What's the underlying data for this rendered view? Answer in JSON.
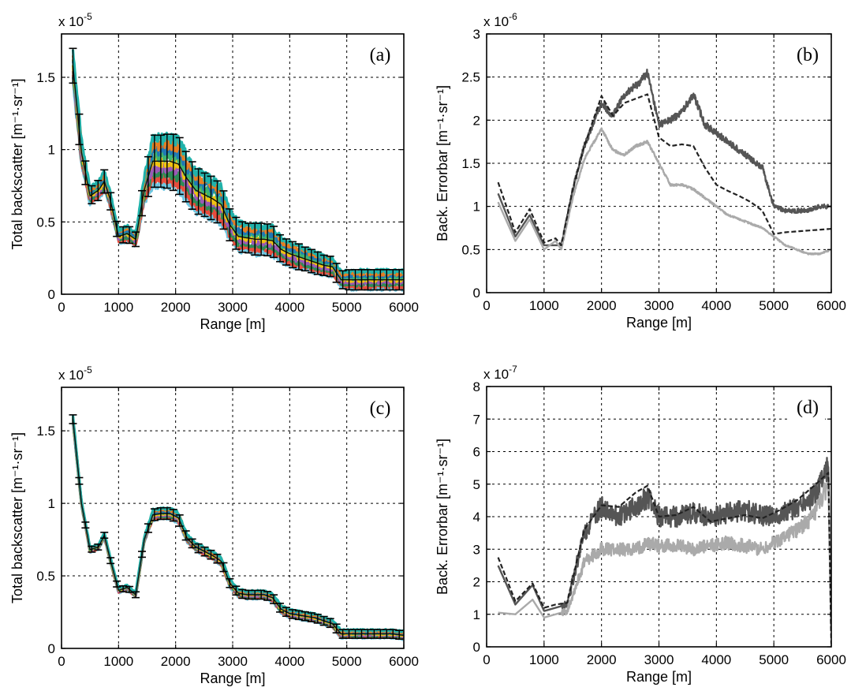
{
  "chart_data": [
    {
      "id": "a",
      "type": "line",
      "panel_label": "(a)",
      "xlabel": "Range [m]",
      "ylabel": "Total backscatter [m⁻¹·sr⁻¹]",
      "exponent": "x 10",
      "exponent_power": "-5",
      "xlim": [
        0,
        6000
      ],
      "ylim": [
        0,
        1.8
      ],
      "xticks": [
        "0",
        "1000",
        "2000",
        "3000",
        "4000",
        "5000",
        "6000"
      ],
      "yticks": [
        "0",
        "0.5",
        "1",
        "1.5"
      ],
      "ytick_values": [
        0,
        0.5,
        1,
        1.5
      ],
      "grid": true,
      "x": [
        200,
        350,
        500,
        650,
        750,
        850,
        1000,
        1150,
        1300,
        1450,
        1600,
        1750,
        1900,
        2050,
        2200,
        2350,
        2500,
        2650,
        2800,
        2950,
        3100,
        3250,
        3400,
        3550,
        3700,
        3850,
        4000,
        4150,
        4300,
        4450,
        4600,
        4750,
        4900,
        5050,
        5200,
        5400,
        5600,
        5800,
        6000
      ],
      "mean": [
        1.58,
        0.98,
        0.68,
        0.72,
        0.78,
        0.66,
        0.4,
        0.42,
        0.38,
        0.72,
        0.92,
        0.92,
        0.92,
        0.9,
        0.8,
        0.72,
        0.69,
        0.66,
        0.62,
        0.48,
        0.4,
        0.39,
        0.38,
        0.38,
        0.37,
        0.31,
        0.28,
        0.26,
        0.24,
        0.22,
        0.2,
        0.19,
        0.1,
        0.1,
        0.1,
        0.1,
        0.1,
        0.1,
        0.1
      ],
      "spread": [
        0.12,
        0.1,
        0.06,
        0.07,
        0.08,
        0.06,
        0.05,
        0.06,
        0.05,
        0.1,
        0.18,
        0.18,
        0.19,
        0.2,
        0.17,
        0.16,
        0.15,
        0.15,
        0.14,
        0.11,
        0.11,
        0.1,
        0.11,
        0.11,
        0.11,
        0.09,
        0.09,
        0.09,
        0.08,
        0.08,
        0.07,
        0.07,
        0.06,
        0.07,
        0.07,
        0.07,
        0.07,
        0.07,
        0.07
      ]
    },
    {
      "id": "b",
      "type": "line",
      "panel_label": "(b)",
      "xlabel": "Range [m]",
      "ylabel": "Back. Errorbar [m⁻¹·sr⁻¹]",
      "exponent": "x 10",
      "exponent_power": "-6",
      "xlim": [
        0,
        6000
      ],
      "ylim": [
        0,
        3
      ],
      "xticks": [
        "0",
        "1000",
        "2000",
        "3000",
        "4000",
        "5000",
        "6000"
      ],
      "yticks": [
        "0",
        "0.5",
        "1",
        "1.5",
        "2",
        "2.5",
        "3"
      ],
      "ytick_values": [
        0,
        0.5,
        1,
        1.5,
        2,
        2.5,
        3
      ],
      "grid": true,
      "x": [
        200,
        500,
        750,
        1000,
        1200,
        1300,
        1500,
        1700,
        2000,
        2200,
        2400,
        2600,
        2800,
        3000,
        3200,
        3400,
        3600,
        3800,
        4000,
        4200,
        4400,
        4600,
        4800,
        5000,
        5200,
        5400,
        5600,
        5800,
        6000
      ],
      "series": [
        {
          "color": "#555555",
          "style": "solid",
          "noise": 0.12,
          "values": [
            1.15,
            0.65,
            0.9,
            0.55,
            0.55,
            0.55,
            1.2,
            1.7,
            2.2,
            2.05,
            2.3,
            2.4,
            2.55,
            1.95,
            2.0,
            2.1,
            2.3,
            1.95,
            1.85,
            1.75,
            1.65,
            1.55,
            1.45,
            1.0,
            0.95,
            0.95,
            0.95,
            1.0,
            1.0
          ]
        },
        {
          "color": "#aaaaaa",
          "style": "solid",
          "noise": 0.05,
          "values": [
            1.05,
            0.6,
            0.85,
            0.5,
            0.6,
            0.5,
            1.1,
            1.55,
            1.9,
            1.65,
            1.6,
            1.7,
            1.75,
            1.5,
            1.25,
            1.25,
            1.2,
            1.1,
            1.0,
            0.9,
            0.85,
            0.8,
            0.75,
            0.65,
            0.55,
            0.5,
            0.45,
            0.45,
            0.5
          ]
        },
        {
          "color": "#222222",
          "style": "dashed",
          "noise": 0,
          "values": [
            1.28,
            0.7,
            0.97,
            0.58,
            0.63,
            0.55,
            1.2,
            1.7,
            2.28,
            2.05,
            2.2,
            2.25,
            2.3,
            1.8,
            1.7,
            1.72,
            1.7,
            1.45,
            1.25,
            1.18,
            1.12,
            1.05,
            0.95,
            0.68,
            0.7,
            0.71,
            0.72,
            0.73,
            0.74
          ]
        }
      ]
    },
    {
      "id": "c",
      "type": "line",
      "panel_label": "(c)",
      "xlabel": "Range [m]",
      "ylabel": "Total backscatter [m⁻¹·sr⁻¹]",
      "exponent": "x 10",
      "exponent_power": "-5",
      "xlim": [
        0,
        6000
      ],
      "ylim": [
        0,
        1.8
      ],
      "xticks": [
        "0",
        "1000",
        "2000",
        "3000",
        "4000",
        "5000",
        "6000"
      ],
      "yticks": [
        "0",
        "0.5",
        "1",
        "1.5"
      ],
      "ytick_values": [
        0,
        0.5,
        1,
        1.5
      ],
      "grid": true,
      "x": [
        200,
        350,
        500,
        650,
        750,
        850,
        1000,
        1150,
        1300,
        1450,
        1600,
        1750,
        1900,
        2050,
        2200,
        2350,
        2500,
        2650,
        2800,
        2950,
        3100,
        3250,
        3400,
        3550,
        3700,
        3850,
        4000,
        4150,
        4300,
        4450,
        4600,
        4750,
        4900,
        5050,
        5200,
        5400,
        5600,
        5800,
        6000
      ],
      "mean": [
        1.58,
        1.0,
        0.68,
        0.7,
        0.78,
        0.62,
        0.4,
        0.42,
        0.37,
        0.75,
        0.92,
        0.93,
        0.93,
        0.9,
        0.76,
        0.7,
        0.67,
        0.64,
        0.6,
        0.45,
        0.38,
        0.37,
        0.37,
        0.37,
        0.35,
        0.27,
        0.24,
        0.23,
        0.22,
        0.21,
        0.19,
        0.17,
        0.1,
        0.1,
        0.1,
        0.1,
        0.1,
        0.1,
        0.09
      ],
      "spread": [
        0.03,
        0.02,
        0.02,
        0.02,
        0.02,
        0.02,
        0.02,
        0.02,
        0.02,
        0.02,
        0.04,
        0.04,
        0.04,
        0.04,
        0.03,
        0.03,
        0.03,
        0.03,
        0.03,
        0.03,
        0.03,
        0.03,
        0.03,
        0.03,
        0.03,
        0.03,
        0.03,
        0.03,
        0.03,
        0.03,
        0.03,
        0.03,
        0.03,
        0.03,
        0.03,
        0.03,
        0.03,
        0.03,
        0.03
      ]
    },
    {
      "id": "d",
      "type": "line",
      "panel_label": "(d)",
      "xlabel": "Range [m]",
      "ylabel": "Back. Errorbar [m⁻¹·sr⁻¹]",
      "exponent": "x 10",
      "exponent_power": "-7",
      "xlim": [
        0,
        6000
      ],
      "ylim": [
        0,
        8
      ],
      "xticks": [
        "0",
        "1000",
        "2000",
        "3000",
        "4000",
        "5000",
        "6000"
      ],
      "yticks": [
        "0",
        "1",
        "2",
        "3",
        "4",
        "5",
        "6",
        "7",
        "8"
      ],
      "ytick_values": [
        0,
        1,
        2,
        3,
        4,
        5,
        6,
        7,
        8
      ],
      "grid": true,
      "x": [
        200,
        500,
        800,
        1000,
        1200,
        1400,
        1700,
        2000,
        2300,
        2600,
        2800,
        3000,
        3300,
        3600,
        3900,
        4200,
        4500,
        4800,
        5100,
        5400,
        5700,
        5950,
        6000
      ],
      "series": [
        {
          "color": "#555555",
          "style": "solid",
          "noise": 0.55,
          "values": [
            2.5,
            1.3,
            1.9,
            1.1,
            1.2,
            1.3,
            3.5,
            4.3,
            4.0,
            4.3,
            4.6,
            4.0,
            4.0,
            4.1,
            4.0,
            4.1,
            4.2,
            4.0,
            4.1,
            4.3,
            4.6,
            5.5,
            0.1
          ]
        },
        {
          "color": "#aaaaaa",
          "style": "solid",
          "noise": 0.45,
          "values": [
            1.05,
            1.0,
            1.45,
            0.9,
            1.0,
            1.1,
            2.6,
            3.0,
            3.0,
            3.0,
            3.2,
            3.1,
            3.1,
            3.0,
            3.1,
            3.2,
            3.1,
            3.0,
            3.3,
            3.6,
            4.0,
            5.0,
            0.1
          ]
        },
        {
          "color": "#222222",
          "style": "dashed",
          "noise": 0,
          "values": [
            2.75,
            1.4,
            1.95,
            1.2,
            1.3,
            1.35,
            3.6,
            4.35,
            4.3,
            4.75,
            4.95,
            4.0,
            4.05,
            4.3,
            3.85,
            3.95,
            4.05,
            3.95,
            4.2,
            4.5,
            4.95,
            5.35,
            0.1
          ]
        }
      ]
    }
  ]
}
